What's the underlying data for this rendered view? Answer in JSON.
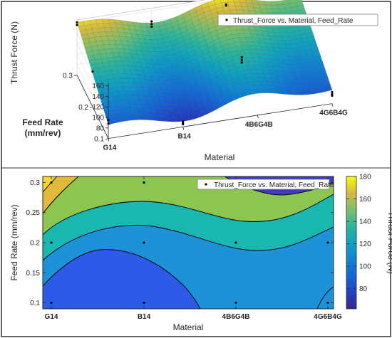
{
  "chart_data": [
    {
      "type": "surface",
      "zlabel": "Thrust Force (N)",
      "ylabel": "Feed Rate\n(mm/rev)",
      "xlabel": "Material",
      "categories": [
        "G14",
        "B14",
        "4B6G4B",
        "4G6B4G"
      ],
      "y_ticks": [
        "0.1",
        "0.2",
        "0.3"
      ],
      "z_ticks": [
        "80",
        "100",
        "120",
        "140",
        "160"
      ],
      "feed_rates": [
        0.1,
        0.2,
        0.3
      ],
      "grid": true,
      "legend": {
        "label": "Thrust_Force vs. Material, Feed_Rate",
        "placement": "top-right"
      },
      "points": [
        {
          "material": "G14",
          "feed": 0.1,
          "force": 95
        },
        {
          "material": "G14",
          "feed": 0.1,
          "force": 88
        },
        {
          "material": "G14",
          "feed": 0.2,
          "force": 127
        },
        {
          "material": "G14",
          "feed": 0.3,
          "force": 160
        },
        {
          "material": "G14",
          "feed": 0.3,
          "force": 155
        },
        {
          "material": "B14",
          "feed": 0.1,
          "force": 70
        },
        {
          "material": "B14",
          "feed": 0.1,
          "force": 67
        },
        {
          "material": "B14",
          "feed": 0.1,
          "force": 65
        },
        {
          "material": "B14",
          "feed": 0.3,
          "force": 140
        },
        {
          "material": "B14",
          "feed": 0.3,
          "force": 135
        },
        {
          "material": "B14",
          "feed": 0.3,
          "force": 130
        },
        {
          "material": "4B6G4B",
          "feed": 0.2,
          "force": 110
        },
        {
          "material": "4B6G4B",
          "feed": 0.2,
          "force": 105
        },
        {
          "material": "4B6G4B",
          "feed": 0.2,
          "force": 100
        },
        {
          "material": "4B6G4B",
          "feed": 0.3,
          "force": 150
        },
        {
          "material": "4B6G4B",
          "feed": 0.3,
          "force": 148
        },
        {
          "material": "4G6B4G",
          "feed": 0.1,
          "force": 82
        },
        {
          "material": "4G6B4G",
          "feed": 0.1,
          "force": 78
        },
        {
          "material": "4G6B4G",
          "feed": 0.1,
          "force": 75
        },
        {
          "material": "4G6B4G",
          "feed": 0.3,
          "force": 146
        }
      ]
    },
    {
      "type": "contour",
      "xlabel": "Material",
      "ylabel": "Feed Rate (mm/rev)",
      "categories": [
        "G14",
        "B14",
        "4B6G4B",
        "4G6B4G"
      ],
      "y_ticks": [
        "0.1",
        "0.15",
        "0.2",
        "0.25",
        "0.3"
      ],
      "ylim": [
        0.09,
        0.31
      ],
      "levels": [
        80,
        100,
        120,
        140,
        160
      ],
      "legend": {
        "label": "Thrust_Force vs. Material, Feed_Rate",
        "placement": "top-right"
      },
      "colorbar": {
        "label": "Thrust Force (N)",
        "ticks": [
          "80",
          "100",
          "120",
          "140",
          "160",
          "180"
        ],
        "range": [
          62,
          180
        ]
      },
      "points": [
        {
          "material": "G14",
          "feed": 0.1
        },
        {
          "material": "G14",
          "feed": 0.2
        },
        {
          "material": "G14",
          "feed": 0.3
        },
        {
          "material": "B14",
          "feed": 0.1
        },
        {
          "material": "B14",
          "feed": 0.2
        },
        {
          "material": "B14",
          "feed": 0.3
        },
        {
          "material": "4B6G4B",
          "feed": 0.1
        },
        {
          "material": "4B6G4B",
          "feed": 0.2
        },
        {
          "material": "4G6B4G",
          "feed": 0.1
        },
        {
          "material": "4G6B4G",
          "feed": 0.2
        },
        {
          "material": "4G6B4G",
          "feed": 0.3
        }
      ]
    }
  ]
}
